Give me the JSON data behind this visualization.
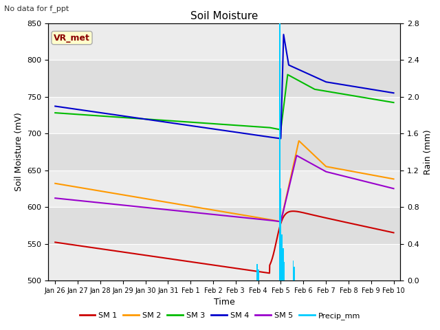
{
  "title": "Soil Moisture",
  "subtitle": "No data for f_ppt",
  "xlabel": "Time",
  "ylabel_left": "Soil Moisture (mV)",
  "ylabel_right": "Rain (mm)",
  "ylim_left": [
    500,
    850
  ],
  "ylim_right": [
    0.0,
    2.8
  ],
  "xtick_labels": [
    "Jan 26",
    "Jan 27",
    "Jan 28",
    "Jan 29",
    "Jan 30",
    "Jan 31",
    "Feb 1",
    "Feb 2",
    "Feb 3",
    "Feb 4",
    "Feb 5",
    "Feb 6",
    "Feb 7",
    "Feb 8",
    "Feb 9",
    "Feb 10"
  ],
  "colors": {
    "SM1": "#cc0000",
    "SM2": "#ff9900",
    "SM3": "#00bb00",
    "SM4": "#0000cc",
    "SM5": "#9900cc",
    "Precip": "#00ccff",
    "plot_bg_light": "#ebebeb",
    "plot_bg_dark": "#d8d8d8"
  },
  "vr_met_label": "VR_met",
  "legend_entries": [
    "SM 1",
    "SM 2",
    "SM 3",
    "SM 4",
    "SM 5",
    "Precip_mm"
  ],
  "figsize": [
    6.4,
    4.8
  ],
  "dpi": 100
}
